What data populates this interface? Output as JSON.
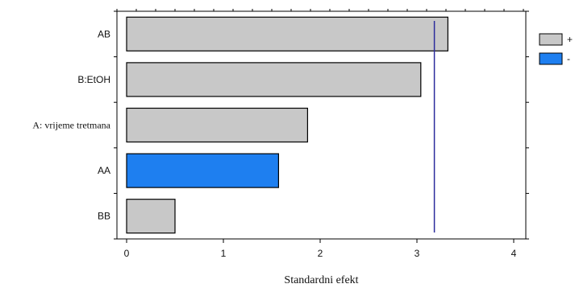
{
  "chart_data": {
    "type": "bar",
    "orientation": "horizontal",
    "title": "",
    "xlabel": "Standardni efekt",
    "ylabel": "",
    "categories": [
      "AB",
      "B:EtOH",
      "A: vrijeme tretmana",
      "AA",
      "BB"
    ],
    "values": [
      3.32,
      3.04,
      1.87,
      1.57,
      0.5
    ],
    "signs": [
      "+",
      "+",
      "+",
      "-",
      "+"
    ],
    "xlim": [
      -0.1,
      4.3
    ],
    "xticks": [
      0,
      1,
      2,
      3,
      4
    ],
    "reference_line": 3.18,
    "grid": false,
    "legend": {
      "placement": "top-right",
      "entries": [
        {
          "label": "+",
          "color": "#c8c8c8"
        },
        {
          "label": "-",
          "color": "#1e7ff0"
        }
      ]
    }
  },
  "colors": {
    "positive": "#c8c8c8",
    "negative": "#1e7ff0",
    "reference_line": "#2b2b9c",
    "axis": "#000000"
  }
}
